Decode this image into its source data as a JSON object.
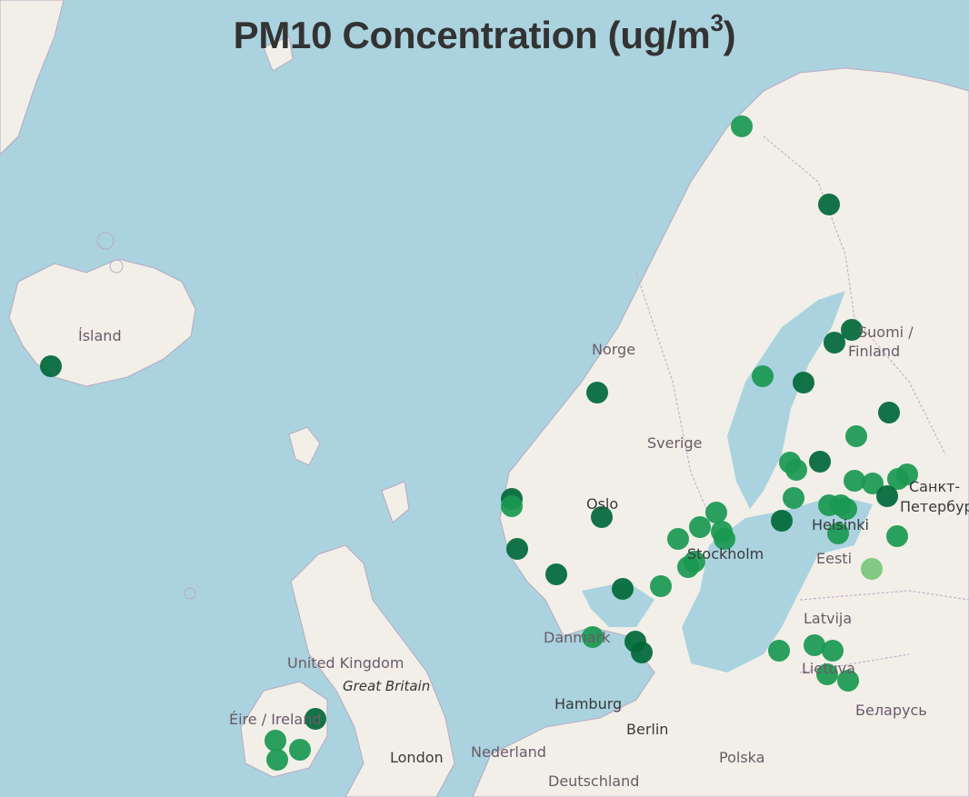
{
  "title": {
    "main": "PM10 Concentration (ug/m",
    "sup": "3",
    "close": ")"
  },
  "map_labels": {
    "island": "Ísland",
    "norge": "Norge",
    "sverige": "Sverige",
    "suomi": "Suomi /",
    "finland": "Finland",
    "oslo": "Oslo",
    "stockholm": "Stockholm",
    "helsinki": "Helsinki",
    "eesti": "Eesti",
    "spb1": "Санкт-",
    "spb2": "Петербург",
    "latvija": "Latvija",
    "lietuva": "Lietuva",
    "belarus": "Беларусь",
    "danmark": "Danmark",
    "uk": "United Kingdom",
    "great_britain": "Great Britain",
    "eire": "Éire / Ireland",
    "hamburg": "Hamburg",
    "berlin": "Berlin",
    "nederland": "Nederland",
    "polska": "Polska",
    "london": "London",
    "deutschland": "Deutschland"
  },
  "colors": {
    "sea": "#aad3df",
    "land": "#f2efe9",
    "dark_green": "#006837",
    "medium_green": "#1a9850",
    "light_green": "#78c679"
  },
  "stations": [
    {
      "color": "dark_green"
    }
  ]
}
